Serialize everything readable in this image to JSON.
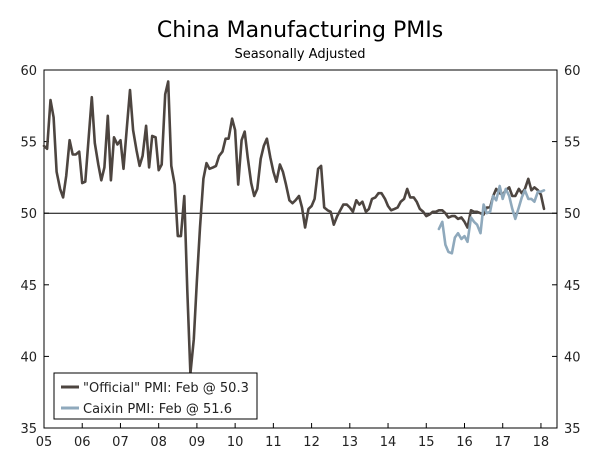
{
  "chart_data": {
    "type": "line",
    "title": "China Manufacturing PMIs",
    "subtitle": "Seasonally Adjusted",
    "xlabel": "",
    "ylabel": "",
    "ylim": [
      35,
      60
    ],
    "xlim": [
      2005.0,
      2018.42
    ],
    "y_ticks": [
      35,
      40,
      45,
      50,
      55,
      60
    ],
    "y_tick_labels": [
      "35",
      "40",
      "45",
      "50",
      "55",
      "60"
    ],
    "x_ticks": [
      2005,
      2006,
      2007,
      2008,
      2009,
      2010,
      2011,
      2012,
      2013,
      2014,
      2015,
      2016,
      2017,
      2018
    ],
    "x_tick_labels": [
      "05",
      "06",
      "07",
      "08",
      "09",
      "10",
      "11",
      "12",
      "13",
      "14",
      "15",
      "16",
      "17",
      "18"
    ],
    "reference_line": 50,
    "legend_position": "bottom-left",
    "series": [
      {
        "name": "\"Official\" PMI: Feb @ 50.3",
        "color": "#4d4540",
        "points": [
          [
            2005.0,
            54.7
          ],
          [
            2005.08,
            54.5
          ],
          [
            2005.17,
            57.9
          ],
          [
            2005.25,
            56.7
          ],
          [
            2005.33,
            52.9
          ],
          [
            2005.42,
            51.7
          ],
          [
            2005.5,
            51.1
          ],
          [
            2005.58,
            52.6
          ],
          [
            2005.67,
            55.1
          ],
          [
            2005.75,
            54.1
          ],
          [
            2005.83,
            54.1
          ],
          [
            2005.92,
            54.3
          ],
          [
            2006.0,
            52.1
          ],
          [
            2006.08,
            52.2
          ],
          [
            2006.17,
            55.3
          ],
          [
            2006.25,
            58.1
          ],
          [
            2006.33,
            54.9
          ],
          [
            2006.42,
            53.4
          ],
          [
            2006.5,
            52.3
          ],
          [
            2006.58,
            53.2
          ],
          [
            2006.67,
            56.8
          ],
          [
            2006.75,
            52.3
          ],
          [
            2006.83,
            55.3
          ],
          [
            2006.92,
            54.8
          ],
          [
            2007.0,
            55.1
          ],
          [
            2007.08,
            53.1
          ],
          [
            2007.17,
            56.1
          ],
          [
            2007.25,
            58.6
          ],
          [
            2007.33,
            55.8
          ],
          [
            2007.42,
            54.4
          ],
          [
            2007.5,
            53.3
          ],
          [
            2007.58,
            54.0
          ],
          [
            2007.67,
            56.1
          ],
          [
            2007.75,
            53.2
          ],
          [
            2007.83,
            55.4
          ],
          [
            2007.92,
            55.3
          ],
          [
            2008.0,
            53.0
          ],
          [
            2008.08,
            53.4
          ],
          [
            2008.17,
            58.3
          ],
          [
            2008.25,
            59.2
          ],
          [
            2008.33,
            53.3
          ],
          [
            2008.42,
            52.0
          ],
          [
            2008.5,
            48.4
          ],
          [
            2008.58,
            48.4
          ],
          [
            2008.67,
            51.2
          ],
          [
            2008.75,
            44.6
          ],
          [
            2008.83,
            38.8
          ],
          [
            2008.92,
            41.2
          ],
          [
            2009.0,
            45.3
          ],
          [
            2009.08,
            49.0
          ],
          [
            2009.17,
            52.4
          ],
          [
            2009.25,
            53.5
          ],
          [
            2009.33,
            53.1
          ],
          [
            2009.42,
            53.2
          ],
          [
            2009.5,
            53.3
          ],
          [
            2009.58,
            54.0
          ],
          [
            2009.67,
            54.3
          ],
          [
            2009.75,
            55.2
          ],
          [
            2009.83,
            55.2
          ],
          [
            2009.92,
            56.6
          ],
          [
            2010.0,
            55.8
          ],
          [
            2010.08,
            52.0
          ],
          [
            2010.17,
            55.1
          ],
          [
            2010.25,
            55.7
          ],
          [
            2010.33,
            53.9
          ],
          [
            2010.42,
            52.1
          ],
          [
            2010.5,
            51.2
          ],
          [
            2010.58,
            51.7
          ],
          [
            2010.67,
            53.8
          ],
          [
            2010.75,
            54.7
          ],
          [
            2010.83,
            55.2
          ],
          [
            2010.92,
            53.9
          ],
          [
            2011.0,
            52.9
          ],
          [
            2011.08,
            52.2
          ],
          [
            2011.17,
            53.4
          ],
          [
            2011.25,
            52.9
          ],
          [
            2011.33,
            52.0
          ],
          [
            2011.42,
            50.9
          ],
          [
            2011.5,
            50.7
          ],
          [
            2011.58,
            50.9
          ],
          [
            2011.67,
            51.2
          ],
          [
            2011.75,
            50.4
          ],
          [
            2011.83,
            49.0
          ],
          [
            2011.92,
            50.3
          ],
          [
            2012.0,
            50.5
          ],
          [
            2012.08,
            51.0
          ],
          [
            2012.17,
            53.1
          ],
          [
            2012.25,
            53.3
          ],
          [
            2012.33,
            50.4
          ],
          [
            2012.42,
            50.2
          ],
          [
            2012.5,
            50.1
          ],
          [
            2012.58,
            49.2
          ],
          [
            2012.67,
            49.8
          ],
          [
            2012.75,
            50.2
          ],
          [
            2012.83,
            50.6
          ],
          [
            2012.92,
            50.6
          ],
          [
            2013.0,
            50.4
          ],
          [
            2013.08,
            50.1
          ],
          [
            2013.17,
            50.9
          ],
          [
            2013.25,
            50.6
          ],
          [
            2013.33,
            50.8
          ],
          [
            2013.42,
            50.1
          ],
          [
            2013.5,
            50.3
          ],
          [
            2013.58,
            51.0
          ],
          [
            2013.67,
            51.1
          ],
          [
            2013.75,
            51.4
          ],
          [
            2013.83,
            51.4
          ],
          [
            2013.92,
            51.0
          ],
          [
            2014.0,
            50.5
          ],
          [
            2014.08,
            50.2
          ],
          [
            2014.17,
            50.3
          ],
          [
            2014.25,
            50.4
          ],
          [
            2014.33,
            50.8
          ],
          [
            2014.42,
            51.0
          ],
          [
            2014.5,
            51.7
          ],
          [
            2014.58,
            51.1
          ],
          [
            2014.67,
            51.1
          ],
          [
            2014.75,
            50.8
          ],
          [
            2014.83,
            50.3
          ],
          [
            2014.92,
            50.1
          ],
          [
            2015.0,
            49.8
          ],
          [
            2015.08,
            49.9
          ],
          [
            2015.17,
            50.1
          ],
          [
            2015.25,
            50.1
          ],
          [
            2015.33,
            50.2
          ],
          [
            2015.42,
            50.2
          ],
          [
            2015.5,
            50.0
          ],
          [
            2015.58,
            49.7
          ],
          [
            2015.67,
            49.8
          ],
          [
            2015.75,
            49.8
          ],
          [
            2015.83,
            49.6
          ],
          [
            2015.92,
            49.7
          ],
          [
            2016.0,
            49.4
          ],
          [
            2016.08,
            49.0
          ],
          [
            2016.17,
            50.2
          ],
          [
            2016.25,
            50.1
          ],
          [
            2016.33,
            50.1
          ],
          [
            2016.42,
            50.0
          ],
          [
            2016.5,
            49.9
          ],
          [
            2016.58,
            50.4
          ],
          [
            2016.67,
            50.4
          ],
          [
            2016.75,
            51.2
          ],
          [
            2016.83,
            51.7
          ],
          [
            2016.92,
            51.4
          ],
          [
            2017.0,
            51.3
          ],
          [
            2017.08,
            51.6
          ],
          [
            2017.17,
            51.8
          ],
          [
            2017.25,
            51.2
          ],
          [
            2017.33,
            51.2
          ],
          [
            2017.42,
            51.7
          ],
          [
            2017.5,
            51.4
          ],
          [
            2017.58,
            51.7
          ],
          [
            2017.67,
            52.4
          ],
          [
            2017.75,
            51.6
          ],
          [
            2017.83,
            51.8
          ],
          [
            2017.92,
            51.6
          ],
          [
            2018.0,
            51.3
          ],
          [
            2018.08,
            50.3
          ]
        ]
      },
      {
        "name": "Caixin PMI: Feb @ 51.6",
        "color": "#8fa9bc",
        "points": [
          [
            2015.33,
            48.9
          ],
          [
            2015.42,
            49.4
          ],
          [
            2015.5,
            47.8
          ],
          [
            2015.58,
            47.3
          ],
          [
            2015.67,
            47.2
          ],
          [
            2015.75,
            48.3
          ],
          [
            2015.83,
            48.6
          ],
          [
            2015.92,
            48.2
          ],
          [
            2016.0,
            48.4
          ],
          [
            2016.08,
            48.0
          ],
          [
            2016.17,
            49.7
          ],
          [
            2016.25,
            49.4
          ],
          [
            2016.33,
            49.2
          ],
          [
            2016.42,
            48.6
          ],
          [
            2016.5,
            50.6
          ],
          [
            2016.58,
            50.0
          ],
          [
            2016.67,
            50.1
          ],
          [
            2016.75,
            51.2
          ],
          [
            2016.83,
            50.9
          ],
          [
            2016.92,
            51.9
          ],
          [
            2017.0,
            51.0
          ],
          [
            2017.08,
            51.7
          ],
          [
            2017.17,
            51.2
          ],
          [
            2017.25,
            50.3
          ],
          [
            2017.33,
            49.6
          ],
          [
            2017.42,
            50.4
          ],
          [
            2017.5,
            51.1
          ],
          [
            2017.58,
            51.6
          ],
          [
            2017.67,
            51.0
          ],
          [
            2017.75,
            51.0
          ],
          [
            2017.83,
            50.8
          ],
          [
            2017.92,
            51.5
          ],
          [
            2018.0,
            51.5
          ],
          [
            2018.08,
            51.6
          ]
        ]
      }
    ]
  }
}
